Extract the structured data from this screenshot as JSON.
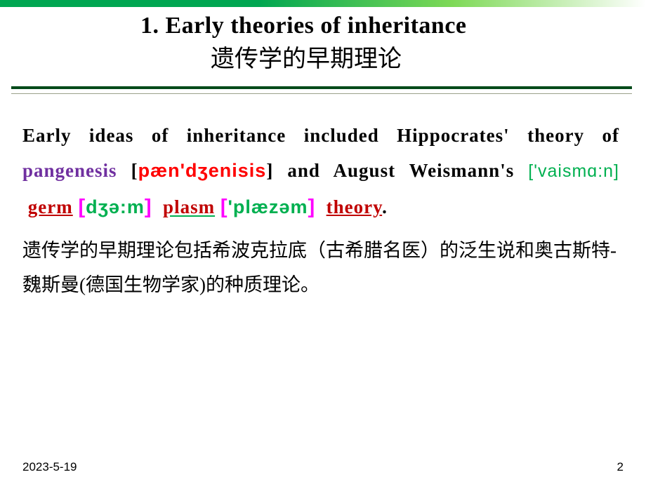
{
  "title": {
    "en": "1.  Early theories  of inheritance",
    "zh": "遗传学的早期理论"
  },
  "paragraph": {
    "lead": " Early ideas of inheritance included Hippocrates' theory of ",
    "pangenesis": "pangenesis",
    "bracket_open": " [",
    "pangenesis_ipa": "pæn'dʒenisis",
    "bracket_close": "]",
    "and_august": "  and August Weismann's ",
    "weismann_ipa": "['vaismɑ:n]",
    "germ": "germ",
    "germ_bracket_open": "[",
    "germ_ipa": "dʒə:m",
    "germ_bracket_close": "]",
    "plasm": "plasm",
    "plasm_bracket_open": "[",
    "plasm_ipa": "'plæzəm",
    "plasm_bracket_close": "]",
    "theory": "theory",
    "period": "."
  },
  "zh_paragraph": "遗传学的早期理论包括希波克拉底（古希腊名医）的泛生说和奥古斯特-魏斯曼(德国生物学家)的种质理论。",
  "footer": {
    "date": "2023-5-19",
    "page": "2"
  },
  "colors": {
    "green_bar_start": "#00a651",
    "green_bar_end": "#ffffff",
    "divider": "#024a1a",
    "pangenesis": "#7030a0",
    "ipa_red": "#ff0000",
    "ipa_green": "#00b050",
    "plasm_red": "#c00000",
    "magenta": "#ff00ff"
  }
}
